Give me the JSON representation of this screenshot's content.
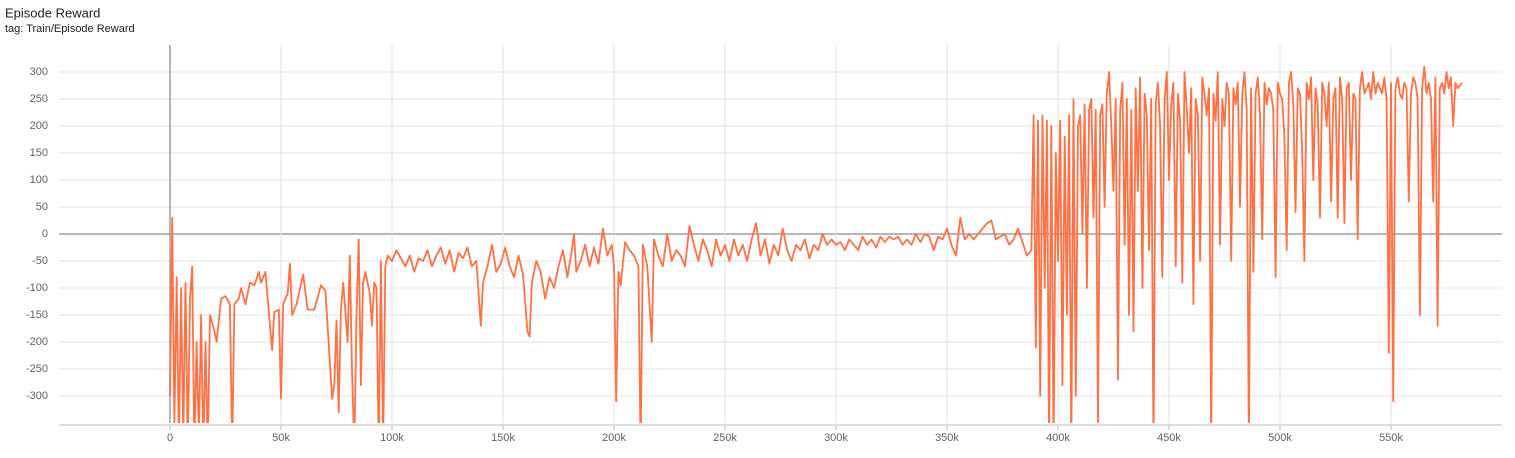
{
  "chart_data": {
    "type": "line",
    "title": "Episode Reward",
    "subtitle": "tag: Train/Episode Reward",
    "color": "#ff7043",
    "grid": true,
    "xlim": [
      -50000,
      600000
    ],
    "ylim": [
      -350,
      350
    ],
    "xticks": [
      0,
      {
        "value": 50000,
        "label": "50k"
      },
      {
        "value": 100000,
        "label": "100k"
      },
      {
        "value": 150000,
        "label": "150k"
      },
      {
        "value": 200000,
        "label": "200k"
      },
      {
        "value": 250000,
        "label": "250k"
      },
      {
        "value": 300000,
        "label": "300k"
      },
      {
        "value": 350000,
        "label": "350k"
      },
      {
        "value": 400000,
        "label": "400k"
      },
      {
        "value": 450000,
        "label": "450k"
      },
      {
        "value": 500000,
        "label": "500k"
      },
      {
        "value": 550000,
        "label": "550k"
      }
    ],
    "yticks": [
      -300,
      -250,
      -200,
      -150,
      -100,
      -50,
      0,
      50,
      100,
      150,
      200,
      250,
      300
    ],
    "x": [
      0,
      1000,
      2000,
      3000,
      4000,
      5000,
      6000,
      7000,
      8000,
      9000,
      10000,
      11000,
      12000,
      13000,
      14000,
      15000,
      16000,
      17000,
      18000,
      20000,
      21000,
      23000,
      25000,
      27000,
      28000,
      29000,
      31000,
      32000,
      34000,
      36000,
      38000,
      40000,
      41000,
      43000,
      44000,
      46000,
      47000,
      49000,
      50000,
      51000,
      53000,
      54000,
      55000,
      57000,
      60000,
      62000,
      65000,
      68000,
      70000,
      73000,
      74000,
      75000,
      76000,
      77000,
      78000,
      80000,
      81000,
      82000,
      83000,
      84000,
      85000,
      86000,
      87000,
      88000,
      90000,
      91000,
      92000,
      93000,
      94000,
      95000,
      96000,
      97000,
      98000,
      100000,
      102000,
      104000,
      106000,
      108000,
      110000,
      112000,
      114000,
      116000,
      118000,
      120000,
      122000,
      124000,
      126000,
      128000,
      130000,
      132000,
      134000,
      136000,
      138000,
      140000,
      141000,
      143000,
      145000,
      147000,
      149000,
      151000,
      153000,
      155000,
      157000,
      159000,
      161000,
      162000,
      163000,
      165000,
      167000,
      169000,
      171000,
      173000,
      175000,
      177000,
      179000,
      181000,
      182000,
      183000,
      185000,
      187000,
      189000,
      191000,
      193000,
      195000,
      197000,
      199000,
      200000,
      201000,
      202000,
      203000,
      205000,
      207000,
      209000,
      211000,
      212000,
      213000,
      215000,
      217000,
      218000,
      220000,
      222000,
      224000,
      226000,
      228000,
      230000,
      232000,
      234000,
      236000,
      238000,
      240000,
      242000,
      244000,
      246000,
      248000,
      250000,
      252000,
      254000,
      256000,
      258000,
      260000,
      262000,
      264000,
      266000,
      268000,
      270000,
      272000,
      274000,
      276000,
      278000,
      280000,
      282000,
      284000,
      286000,
      288000,
      290000,
      292000,
      294000,
      296000,
      298000,
      300000,
      302000,
      304000,
      306000,
      308000,
      310000,
      312000,
      314000,
      316000,
      318000,
      320000,
      322000,
      324000,
      326000,
      328000,
      330000,
      332000,
      334000,
      336000,
      338000,
      340000,
      342000,
      344000,
      346000,
      348000,
      350000,
      352000,
      354000,
      356000,
      358000,
      360000,
      362000,
      364000,
      366000,
      368000,
      370000,
      372000,
      374000,
      376000,
      378000,
      380000,
      382000,
      384000,
      386000,
      388000,
      389000,
      390000,
      391000,
      392000,
      393000,
      394000,
      395000,
      396000,
      397000,
      398000,
      399000,
      400000,
      401000,
      402000,
      403000,
      404000,
      405000,
      406000,
      407000,
      408000,
      409000,
      410000,
      411000,
      412000,
      413000,
      414000,
      415000,
      416000,
      417000,
      418000,
      419000,
      420000,
      421000,
      422000,
      423000,
      424000,
      425000,
      426000,
      427000,
      428000,
      429000,
      430000,
      431000,
      432000,
      433000,
      434000,
      435000,
      436000,
      437000,
      438000,
      439000,
      440000,
      441000,
      442000,
      443000,
      444000,
      445000,
      446000,
      447000,
      448000,
      449000,
      450000,
      451000,
      452000,
      453000,
      454000,
      455000,
      456000,
      457000,
      458000,
      459000,
      460000,
      461000,
      462000,
      463000,
      464000,
      465000,
      466000,
      467000,
      468000,
      469000,
      470000,
      471000,
      472000,
      473000,
      474000,
      475000,
      476000,
      477000,
      478000,
      479000,
      480000,
      481000,
      482000,
      483000,
      484000,
      485000,
      486000,
      487000,
      488000,
      489000,
      490000,
      491000,
      492000,
      493000,
      494000,
      495000,
      496000,
      497000,
      498000,
      499000,
      500000,
      501000,
      502000,
      503000,
      504000,
      505000,
      506000,
      507000,
      508000,
      509000,
      510000,
      511000,
      512000,
      513000,
      514000,
      515000,
      516000,
      517000,
      518000,
      519000,
      520000,
      521000,
      522000,
      523000,
      524000,
      525000,
      526000,
      527000,
      528000,
      529000,
      530000,
      531000,
      532000,
      533000,
      534000,
      535000,
      536000,
      537000,
      538000,
      539000,
      540000,
      541000,
      542000,
      543000,
      544000,
      545000,
      546000,
      547000,
      548000,
      549000,
      550000,
      551000,
      552000,
      553000,
      554000,
      555000,
      556000,
      557000,
      558000,
      559000,
      560000,
      561000,
      562000,
      563000,
      564000,
      565000,
      566000,
      567000,
      568000,
      569000,
      570000,
      571000,
      572000,
      573000,
      574000,
      575000,
      576000,
      577000,
      578000,
      579000,
      580000,
      581000,
      582000
    ],
    "values": [
      -300,
      30,
      -350,
      -80,
      -400,
      -100,
      -380,
      -90,
      -400,
      -120,
      -60,
      -400,
      -200,
      -380,
      -150,
      -400,
      -200,
      -400,
      -150,
      -180,
      -200,
      -120,
      -115,
      -130,
      -400,
      -130,
      -120,
      -100,
      -130,
      -90,
      -95,
      -70,
      -90,
      -70,
      -120,
      -215,
      -145,
      -140,
      -305,
      -130,
      -110,
      -55,
      -150,
      -130,
      -75,
      -140,
      -140,
      -95,
      -105,
      -305,
      -280,
      -160,
      -330,
      -140,
      -90,
      -200,
      -40,
      -250,
      -400,
      -150,
      -10,
      -280,
      -90,
      -70,
      -110,
      -170,
      -90,
      -100,
      -400,
      -50,
      -400,
      -60,
      -40,
      -50,
      -30,
      -45,
      -60,
      -40,
      -70,
      -45,
      -50,
      -30,
      -60,
      -40,
      -25,
      -55,
      -30,
      -70,
      -35,
      -45,
      -25,
      -60,
      -50,
      -170,
      -90,
      -60,
      -20,
      -70,
      -55,
      -25,
      -60,
      -80,
      -40,
      -75,
      -180,
      -190,
      -90,
      -50,
      -70,
      -120,
      -80,
      -100,
      -60,
      -30,
      -80,
      -30,
      0,
      -70,
      -50,
      -20,
      -60,
      -25,
      -55,
      10,
      -40,
      -20,
      -60,
      -310,
      -70,
      -95,
      -15,
      -30,
      -40,
      -60,
      -400,
      -20,
      -60,
      -200,
      -10,
      -40,
      -60,
      0,
      -50,
      -30,
      -40,
      -60,
      15,
      -20,
      -50,
      -10,
      -30,
      -60,
      -10,
      -40,
      -20,
      -50,
      -10,
      -40,
      -20,
      -50,
      -10,
      20,
      -40,
      -10,
      -55,
      -20,
      -40,
      10,
      -30,
      -50,
      -20,
      -30,
      -10,
      -45,
      -20,
      -30,
      0,
      -20,
      -10,
      -20,
      -15,
      -30,
      -10,
      -20,
      -30,
      -5,
      -20,
      -10,
      -25,
      -5,
      -15,
      -5,
      -10,
      -5,
      -20,
      -10,
      -20,
      0,
      -15,
      0,
      -5,
      -30,
      -5,
      -10,
      10,
      -20,
      -40,
      30,
      -10,
      0,
      -10,
      0,
      10,
      20,
      25,
      -10,
      -5,
      0,
      -20,
      -10,
      10,
      -15,
      -40,
      -30,
      220,
      -210,
      210,
      -300,
      220,
      -100,
      210,
      -400,
      200,
      -400,
      150,
      -50,
      210,
      -280,
      180,
      -150,
      220,
      -400,
      250,
      -300,
      200,
      220,
      0,
      240,
      -100,
      230,
      250,
      30,
      230,
      -350,
      220,
      240,
      50,
      260,
      300,
      200,
      80,
      250,
      -270,
      230,
      280,
      -20,
      250,
      -150,
      230,
      -180,
      270,
      80,
      290,
      -100,
      260,
      220,
      -30,
      250,
      -400,
      240,
      280,
      200,
      -80,
      250,
      300,
      100,
      240,
      280,
      -60,
      260,
      210,
      -90,
      300,
      230,
      150,
      270,
      -130,
      250,
      220,
      -50,
      290,
      260,
      220,
      270,
      -400,
      260,
      210,
      300,
      -20,
      250,
      200,
      280,
      260,
      -50,
      270,
      240,
      280,
      50,
      260,
      300,
      230,
      -400,
      270,
      -70,
      260,
      290,
      220,
      -10,
      280,
      240,
      270,
      260,
      230,
      -80,
      280,
      260,
      250,
      180,
      -30,
      280,
      300,
      240,
      40,
      270,
      260,
      150,
      -50,
      280,
      250,
      290,
      100,
      270,
      240,
      30,
      280,
      260,
      200,
      280,
      60,
      250,
      270,
      30,
      290,
      250,
      20,
      270,
      280,
      100,
      260,
      250,
      -10,
      270,
      300,
      260,
      270,
      280,
      250,
      300,
      260,
      280,
      270,
      260,
      290,
      250,
      -220,
      280,
      -310,
      270,
      290,
      260,
      250,
      280,
      270,
      60,
      260,
      290,
      280,
      250,
      -150,
      270,
      310,
      260,
      280,
      250,
      60,
      290,
      -170,
      270,
      280,
      260,
      300,
      270,
      290,
      200,
      280,
      270,
      275,
      280
    ]
  }
}
